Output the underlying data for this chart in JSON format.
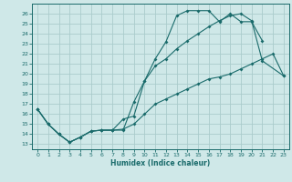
{
  "xlabel": "Humidex (Indice chaleur)",
  "bg_color": "#cfe8e8",
  "grid_color": "#aacccc",
  "line_color": "#1a6b6b",
  "xlim": [
    -0.5,
    23.5
  ],
  "ylim": [
    12.5,
    27.0
  ],
  "xticks": [
    0,
    1,
    2,
    3,
    4,
    5,
    6,
    7,
    8,
    9,
    10,
    11,
    12,
    13,
    14,
    15,
    16,
    17,
    18,
    19,
    20,
    21,
    22,
    23
  ],
  "yticks": [
    13,
    14,
    15,
    16,
    17,
    18,
    19,
    20,
    21,
    22,
    23,
    24,
    25,
    26
  ],
  "curve1_x": [
    0,
    1,
    2,
    3,
    4,
    5,
    6,
    7,
    8,
    9,
    10,
    11,
    12,
    13,
    14,
    15,
    16,
    17,
    18,
    19,
    20,
    21
  ],
  "curve1_y": [
    16.5,
    15.0,
    14.0,
    13.2,
    13.7,
    14.3,
    14.4,
    14.4,
    14.4,
    17.2,
    19.3,
    21.5,
    23.2,
    25.8,
    26.3,
    26.3,
    26.3,
    25.2,
    26.0,
    25.2,
    25.2,
    23.3
  ],
  "curve2_x": [
    0,
    1,
    2,
    3,
    4,
    5,
    6,
    7,
    8,
    9,
    10,
    11,
    12,
    13,
    14,
    15,
    16,
    17,
    18,
    19,
    20,
    21,
    23
  ],
  "curve2_y": [
    16.5,
    15.0,
    14.0,
    13.2,
    13.7,
    14.3,
    14.4,
    14.4,
    15.5,
    15.8,
    19.3,
    20.8,
    21.5,
    22.5,
    23.3,
    24.0,
    24.7,
    25.3,
    25.8,
    26.0,
    25.3,
    21.3,
    19.8
  ],
  "curve3_x": [
    0,
    1,
    2,
    3,
    4,
    5,
    6,
    7,
    8,
    9,
    10,
    11,
    12,
    13,
    14,
    15,
    16,
    17,
    18,
    19,
    20,
    21,
    22,
    23
  ],
  "curve3_y": [
    16.5,
    15.0,
    14.0,
    13.2,
    13.7,
    14.3,
    14.4,
    14.4,
    14.5,
    15.0,
    16.0,
    17.0,
    17.5,
    18.0,
    18.5,
    19.0,
    19.5,
    19.7,
    20.0,
    20.5,
    21.0,
    21.5,
    22.0,
    19.8
  ]
}
